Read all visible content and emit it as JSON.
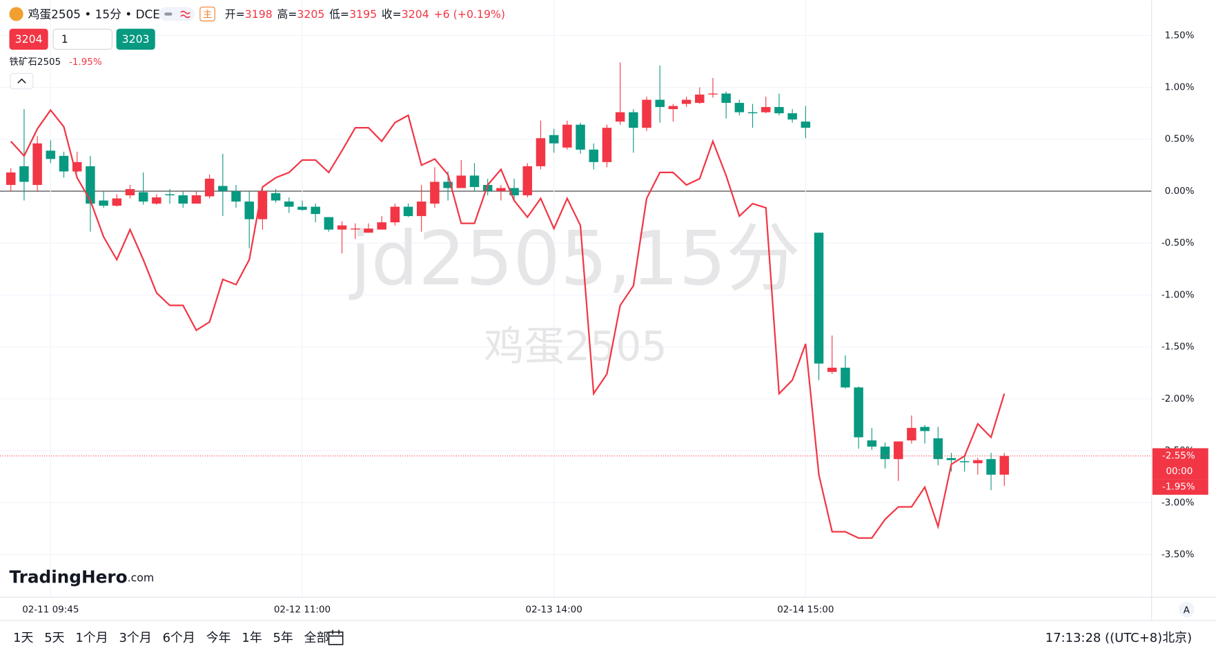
{
  "header": {
    "symbol": "鸡蛋2505 • 15分 • DCE",
    "badge": "主",
    "quote": [
      {
        "label": "开=",
        "value": 3198
      },
      {
        "label": "高=",
        "value": 3205
      },
      {
        "label": "低=",
        "value": 3195
      },
      {
        "label": "收=",
        "value": 3204
      }
    ],
    "change": "+6 (+0.19%)",
    "sell": 3204,
    "quantity": 1,
    "buy": 3203
  },
  "watermark": {
    "title": "jd2505,15分"
  },
  "logo": {
    "name": "TradingHero",
    "suffix": ".com"
  },
  "toolbar": {
    "ranges": [
      "1天",
      "5天",
      "1个月",
      "3个月",
      "6个月",
      "今年",
      "1年",
      "5年",
      "全部"
    ],
    "time": "17:13:28 ((UTC+8)北京)",
    "axis_mode": "A"
  },
  "chart_data": {
    "type": "candlestick",
    "categories": [
      null,
      null,
      null,
      "02-11 09:45",
      null,
      null,
      null,
      null,
      null,
      null,
      null,
      null,
      null,
      null,
      null,
      null,
      null,
      null,
      null,
      null,
      null,
      null,
      "02-12 11:00",
      null,
      null,
      null,
      null,
      null,
      null,
      null,
      null,
      null,
      null,
      null,
      null,
      null,
      null,
      null,
      null,
      null,
      null,
      "02-13 14:00",
      null,
      null,
      null,
      null,
      null,
      null,
      null,
      null,
      null,
      null,
      null,
      null,
      null,
      null,
      null,
      null,
      null,
      null,
      "02-14 15:00",
      null,
      null,
      null,
      null,
      null,
      null,
      null,
      null,
      null,
      null,
      null,
      null,
      null,
      null,
      null
    ],
    "series": [
      {
        "name": "鸡蛋2505",
        "type": "candlestick",
        "up_color": "#f23645",
        "down_color": "#089981",
        "last_value_label": "-2.55%",
        "open": [
          0.06,
          0.24,
          0.06,
          0.39,
          0.34,
          0.19,
          0.24,
          -0.09,
          -0.14,
          -0.04,
          -0.01,
          -0.12,
          -0.03,
          -0.04,
          -0.12,
          -0.05,
          0.05,
          0,
          -0.1,
          -0.27,
          -0.02,
          -0.1,
          -0.15,
          -0.15,
          -0.25,
          -0.37,
          -0.36,
          -0.4,
          -0.37,
          -0.3,
          -0.15,
          -0.24,
          -0.12,
          0.09,
          0.03,
          0.15,
          0.06,
          0,
          0.03,
          -0.04,
          0.24,
          0.54,
          0.42,
          0.64,
          0.4,
          0.28,
          0.67,
          0.76,
          0.61,
          0.88,
          0.79,
          0.84,
          0.85,
          0.94,
          0.94,
          0.85,
          0.76,
          0.76,
          0.81,
          0.75,
          0.67,
          -0.4,
          -1.74,
          -1.7,
          -1.89,
          -2.4,
          -2.46,
          -2.58,
          -2.4,
          -2.27,
          -2.38,
          -2.57,
          -2.6,
          -2.62,
          -2.58,
          -2.73
        ],
        "high": [
          0.22,
          0.79,
          0.53,
          0.49,
          0.38,
          0.38,
          0.34,
          0,
          -0.03,
          0.06,
          0.18,
          -0.03,
          0.02,
          0,
          0,
          0.16,
          0.36,
          0.06,
          0,
          0.04,
          0.02,
          -0.06,
          -0.09,
          -0.12,
          -0.25,
          -0.29,
          -0.31,
          -0.31,
          -0.24,
          -0.12,
          -0.12,
          0.06,
          0.23,
          0.19,
          0.3,
          0.27,
          0.12,
          0.06,
          0.12,
          0.27,
          0.68,
          0.6,
          0.68,
          0.66,
          0.46,
          0.64,
          1.24,
          0.79,
          0.91,
          1.21,
          0.84,
          0.91,
          1.0,
          1.09,
          0.96,
          0.88,
          0.84,
          0.91,
          0.94,
          0.79,
          0.82,
          -0.4,
          -1.39,
          -1.58,
          -1.88,
          -2.28,
          -2.42,
          -2.41,
          -2.16,
          -2.25,
          -2.27,
          -2.52,
          -2.54,
          -2.57,
          -2.52,
          -2.52
        ],
        "low": [
          0,
          -0.09,
          0,
          0.27,
          0.13,
          0.18,
          -0.39,
          -0.16,
          -0.15,
          -0.07,
          -0.13,
          -0.13,
          -0.12,
          -0.16,
          -0.12,
          -0.07,
          -0.24,
          -0.16,
          -0.55,
          -0.37,
          -0.11,
          -0.21,
          -0.19,
          -0.3,
          -0.39,
          -0.6,
          -0.46,
          -0.4,
          -0.37,
          -0.33,
          -0.25,
          -0.39,
          -0.16,
          -0.09,
          0.03,
          0,
          -0.04,
          -0.09,
          -0.09,
          -0.06,
          0.21,
          0.37,
          0.4,
          0.36,
          0.21,
          0.23,
          0.64,
          0.37,
          0.58,
          0.66,
          0.67,
          0.81,
          0.84,
          0.9,
          0.7,
          0.73,
          0.61,
          0.75,
          0.73,
          0.66,
          0.51,
          -1.82,
          -1.76,
          -1.9,
          -2.48,
          -2.49,
          -2.67,
          -2.79,
          -2.43,
          -2.43,
          -2.64,
          -2.7,
          -2.7,
          -2.73,
          -2.88,
          -2.84
        ],
        "close": [
          0.18,
          0.09,
          0.46,
          0.31,
          0.19,
          0.28,
          -0.12,
          -0.14,
          -0.07,
          0.02,
          -0.1,
          -0.06,
          -0.04,
          -0.12,
          -0.04,
          0.12,
          0,
          -0.1,
          -0.27,
          0,
          -0.09,
          -0.15,
          -0.18,
          -0.22,
          -0.37,
          -0.33,
          -0.36,
          -0.36,
          -0.3,
          -0.15,
          -0.24,
          -0.1,
          0.09,
          0.03,
          0.15,
          0.04,
          0,
          0.03,
          -0.04,
          0.24,
          0.51,
          0.46,
          0.64,
          0.4,
          0.28,
          0.61,
          0.76,
          0.61,
          0.88,
          0.81,
          0.82,
          0.88,
          0.93,
          0.94,
          0.85,
          0.76,
          0.75,
          0.81,
          0.75,
          0.69,
          0.61,
          -1.66,
          -1.7,
          -1.89,
          -2.37,
          -2.46,
          -2.58,
          -2.41,
          -2.28,
          -2.31,
          -2.58,
          -2.59,
          -2.61,
          -2.59,
          -2.73,
          -2.55
        ]
      },
      {
        "name": "铁矿石2505",
        "type": "line",
        "color": "#f23645",
        "last_value_label": "-1.95%",
        "values": [
          0.48,
          0.34,
          0.6,
          0.78,
          0.62,
          0.13,
          -0.09,
          -0.44,
          -0.66,
          -0.37,
          -0.66,
          -0.98,
          -1.1,
          -1.1,
          -1.34,
          -1.26,
          -0.85,
          -0.9,
          -0.66,
          0.04,
          0.13,
          0.18,
          0.3,
          0.3,
          0.18,
          0.39,
          0.61,
          0.61,
          0.48,
          0.66,
          0.73,
          0.25,
          0.31,
          0.16,
          -0.31,
          -0.31,
          0.06,
          0.21,
          -0.09,
          -0.25,
          -0.07,
          -0.36,
          -0.07,
          -0.33,
          -1.95,
          -1.76,
          -1.1,
          -0.91,
          -0.07,
          0.18,
          0.18,
          0.06,
          0.12,
          0.48,
          0.15,
          -0.24,
          -0.12,
          -0.16,
          -1.95,
          -1.82,
          -1.47,
          -2.73,
          -3.28,
          -3.28,
          -3.34,
          -3.34,
          -3.16,
          -3.04,
          -3.04,
          -2.85,
          -3.23,
          -2.63,
          -2.55,
          -2.24,
          -2.37,
          -1.95
        ]
      }
    ],
    "countdown": "00:00",
    "ylim": [
      -3.91,
      1.84
    ],
    "yticks": [
      {
        "value": 1.5,
        "label": "1.50%"
      },
      {
        "value": 1.0,
        "label": "1.00%"
      },
      {
        "value": 0.5,
        "label": "0.50%"
      },
      {
        "value": 0,
        "label": "0.00%"
      },
      {
        "value": -0.5,
        "label": "-0.50%"
      },
      {
        "value": -1.0,
        "label": "-1.00%"
      },
      {
        "value": -1.5,
        "label": "-1.50%"
      },
      {
        "value": -2.0,
        "label": "-2.00%"
      },
      {
        "value": -2.5,
        "label": "-2.50%"
      },
      {
        "value": -3.0,
        "label": "-3.00%"
      },
      {
        "value": -3.5,
        "label": "-3.50%"
      }
    ],
    "grid": true
  }
}
